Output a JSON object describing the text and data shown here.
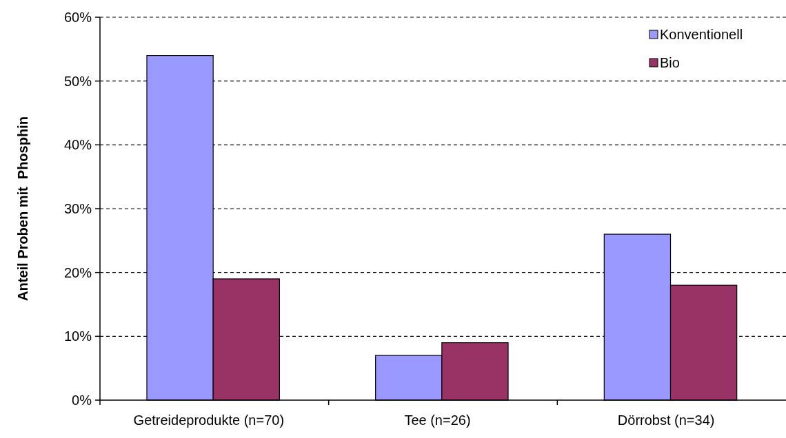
{
  "chart_data": {
    "type": "bar",
    "ylabel": "Anteil Proben mit  Phosphin",
    "categories": [
      "Getreideprodukte (n=70)",
      "Tee (n=26)",
      "Dörrobst (n=34)"
    ],
    "series": [
      {
        "name": "Konventionell",
        "color": "#9999ff",
        "values": [
          54,
          7,
          26
        ]
      },
      {
        "name": "Bio",
        "color": "#993366",
        "values": [
          19,
          9,
          18
        ]
      }
    ],
    "ylim": [
      0,
      60
    ],
    "yticks": [
      {
        "value": 0,
        "label": "0%"
      },
      {
        "value": 10,
        "label": "10%"
      },
      {
        "value": 20,
        "label": "20%"
      },
      {
        "value": 30,
        "label": "30%"
      },
      {
        "value": 40,
        "label": "40%"
      },
      {
        "value": 50,
        "label": "50%"
      },
      {
        "value": 60,
        "label": "60%"
      }
    ],
    "grid": "y",
    "legend": "top right"
  }
}
